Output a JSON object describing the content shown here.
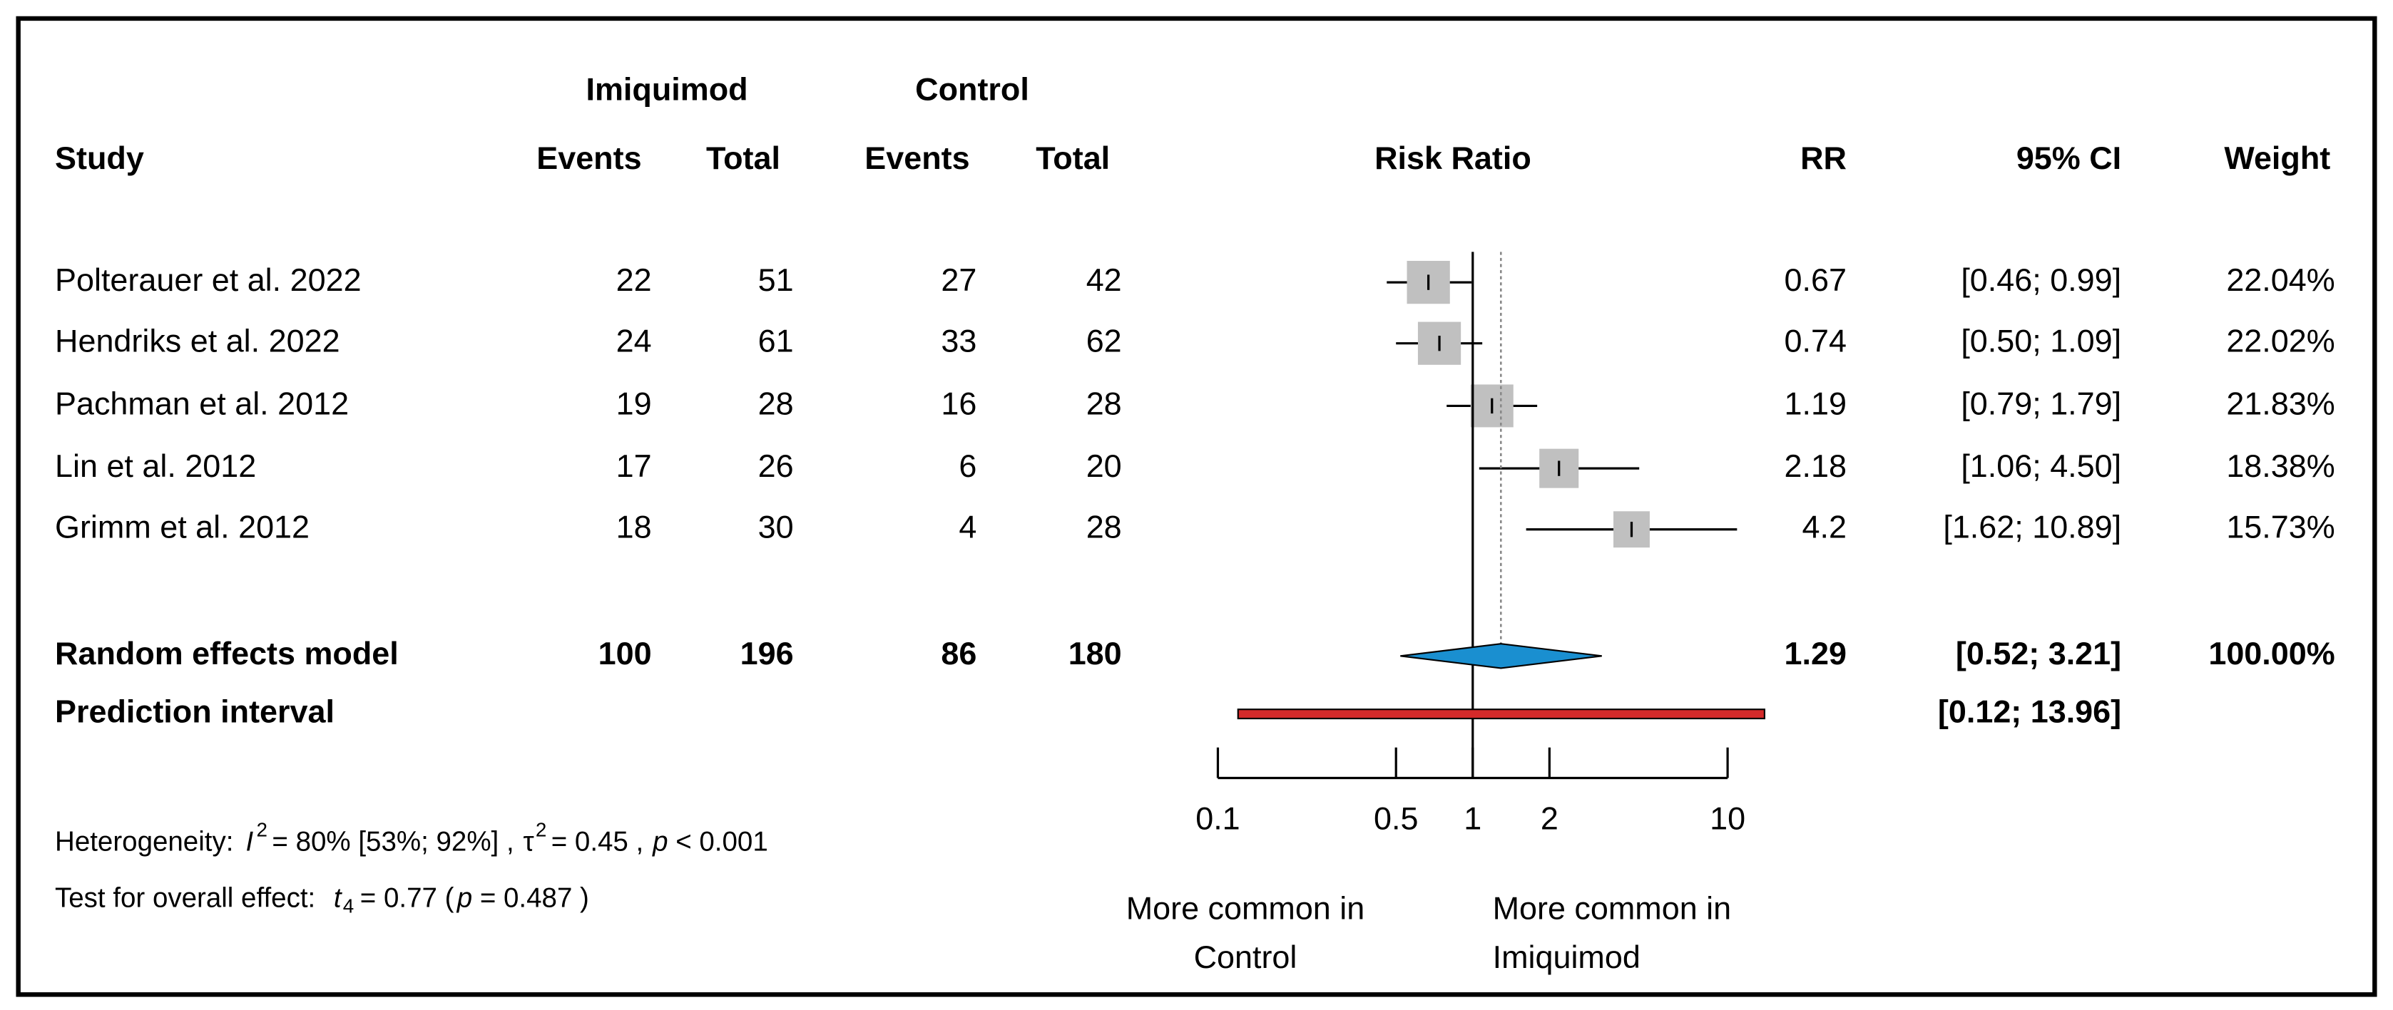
{
  "chart_data": {
    "type": "forest",
    "group_headers": [
      "Imiquimod",
      "Control"
    ],
    "column_headers": [
      "Study",
      "Events",
      "Total",
      "Events",
      "Total",
      "Risk Ratio",
      "RR",
      "95% CI",
      "Weight"
    ],
    "studies": [
      {
        "name": "Polterauer et al. 2022",
        "treatment_events": 22,
        "treatment_total": 51,
        "control_events": 27,
        "control_total": 42,
        "rr": 0.67,
        "ci_lower": 0.46,
        "ci_upper": 0.99,
        "ci_label": "[0.46; 0.99]",
        "weight": 22.04,
        "weight_label": "22.04%"
      },
      {
        "name": "Hendriks et al. 2022",
        "treatment_events": 24,
        "treatment_total": 61,
        "control_events": 33,
        "control_total": 62,
        "rr": 0.74,
        "ci_lower": 0.5,
        "ci_upper": 1.09,
        "ci_label": "[0.50; 1.09]",
        "weight": 22.02,
        "weight_label": "22.02%"
      },
      {
        "name": "Pachman et al. 2012",
        "treatment_events": 19,
        "treatment_total": 28,
        "control_events": 16,
        "control_total": 28,
        "rr": 1.19,
        "ci_lower": 0.79,
        "ci_upper": 1.79,
        "ci_label": "[0.79; 1.79]",
        "weight": 21.83,
        "weight_label": "21.83%"
      },
      {
        "name": "Lin et al. 2012",
        "treatment_events": 17,
        "treatment_total": 26,
        "control_events": 6,
        "control_total": 20,
        "rr": 2.18,
        "ci_lower": 1.06,
        "ci_upper": 4.5,
        "ci_label": "[1.06; 4.50]",
        "weight": 18.38,
        "weight_label": "18.38%"
      },
      {
        "name": "Grimm et al. 2012",
        "treatment_events": 18,
        "treatment_total": 30,
        "control_events": 4,
        "control_total": 28,
        "rr": 4.2,
        "ci_lower": 1.62,
        "ci_upper": 10.89,
        "ci_label": "[1.62; 10.89]",
        "weight": 15.73,
        "weight_label": "15.73%"
      }
    ],
    "pooled": {
      "name": "Random effects model",
      "treatment_events": 100,
      "treatment_total": 196,
      "control_events": 86,
      "control_total": 180,
      "rr": 1.29,
      "ci_lower": 0.52,
      "ci_upper": 3.21,
      "ci_label": "[0.52; 3.21]",
      "weight": 100,
      "weight_label": "100.00%"
    },
    "prediction": {
      "name": "Prediction interval",
      "lower": 0.12,
      "upper": 13.96,
      "label": "[0.12; 13.96]"
    },
    "xscale": "log",
    "xlim": [
      0.1,
      10
    ],
    "xticks": [
      0.1,
      0.5,
      1,
      2,
      10
    ],
    "reference": 1,
    "colors": {
      "square": "#c0c0c0",
      "diamond": "#1a8fd0",
      "prediction": "#d42a2a"
    },
    "x_label_left": [
      "More common in",
      "Control"
    ],
    "x_label_right": [
      "More common in",
      "Imiquimod"
    ],
    "heterogeneity": {
      "label": "Heterogeneity:",
      "i2_symbol": "I",
      "i2_sup": "2",
      "i2_text": "= 80% [53%; 92%]   ,",
      "tau2_symbol": "τ",
      "tau2_sup": "2",
      "tau2_text": "= 0.45 ,",
      "p_symbol": "p",
      "p_text": "< 0.001"
    },
    "overall": {
      "label": "Test for overall effect:",
      "t_symbol": "t",
      "t_sub": "4",
      "t_text": "=  0.77  (",
      "p_symbol": "p",
      "p_text": "= 0.487 )"
    }
  }
}
